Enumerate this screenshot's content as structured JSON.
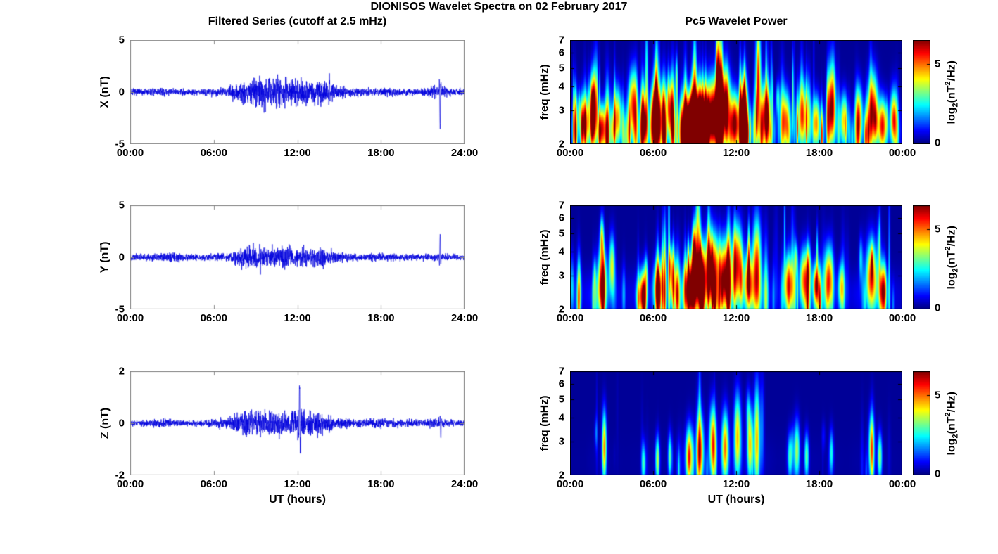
{
  "figure": {
    "title": "DIONISOS Wavelet Spectra on 02 February 2017",
    "left_column_title": "Filtered Series (cutoff at 2.5 mHz)",
    "right_column_title": "Pc5 Wavelet Power",
    "xlabel": "UT (hours)",
    "colorbar": {
      "label_parts": {
        "p1": "log",
        "sub": "2",
        "p2": "(nT",
        "sup": "2",
        "p3": "/Hz)"
      },
      "ticks": [
        0,
        5
      ],
      "range": [
        0,
        6.5
      ]
    }
  },
  "chart_data": [
    {
      "type": "line",
      "id": "ts_x",
      "ylabel": "X (nT)",
      "xlabel": "",
      "ylim": [
        -5,
        5
      ],
      "yticks": [
        5,
        0,
        -5
      ],
      "xticks": {
        "labels": [
          "00:00",
          "06:00",
          "12:00",
          "18:00",
          "24:00"
        ],
        "hours": [
          0,
          6,
          12,
          18,
          24
        ]
      },
      "x_range_hours": [
        0,
        24
      ],
      "line_color": "#0000DD",
      "seed": 7,
      "noise_envelope_hourly": [
        0.28,
        0.3,
        0.34,
        0.3,
        0.28,
        0.3,
        0.34,
        0.4,
        0.95,
        1.3,
        1.25,
        1.4,
        1.05,
        0.95,
        1.1,
        0.45,
        0.38,
        0.32,
        0.42,
        0.36,
        0.3,
        0.3,
        0.55,
        0.3,
        0.28
      ],
      "spikes": [
        {
          "hour": 22.25,
          "amp": -3.4
        },
        {
          "hour": 14.3,
          "amp": 1.6
        },
        {
          "hour": 10.6,
          "amp": 1.8
        }
      ]
    },
    {
      "type": "line",
      "id": "ts_y",
      "ylabel": "Y (nT)",
      "xlabel": "",
      "ylim": [
        -5,
        5
      ],
      "yticks": [
        5,
        0,
        -5
      ],
      "xticks": {
        "labels": [
          "00:00",
          "06:00",
          "12:00",
          "18:00",
          "24:00"
        ],
        "hours": [
          0,
          6,
          12,
          18,
          24
        ]
      },
      "x_range_hours": [
        0,
        24
      ],
      "line_color": "#0000DD",
      "seed": 13,
      "noise_envelope_hourly": [
        0.24,
        0.26,
        0.3,
        0.45,
        0.28,
        0.24,
        0.3,
        0.36,
        0.8,
        1.0,
        0.85,
        0.95,
        0.8,
        0.95,
        0.9,
        0.38,
        0.3,
        0.3,
        0.36,
        0.3,
        0.26,
        0.26,
        0.32,
        0.26,
        0.24
      ],
      "spikes": [
        {
          "hour": 22.25,
          "amp": 2.3
        },
        {
          "hour": 9.3,
          "amp": 1.4
        }
      ]
    },
    {
      "type": "line",
      "id": "ts_z",
      "ylabel": "Z (nT)",
      "xlabel": "UT (hours)",
      "ylim": [
        -2,
        2
      ],
      "yticks": [
        2,
        0,
        -2
      ],
      "xticks": {
        "labels": [
          "00:00",
          "06:00",
          "12:00",
          "18:00",
          "24:00"
        ],
        "hours": [
          0,
          6,
          12,
          18,
          24
        ]
      },
      "x_range_hours": [
        0,
        24
      ],
      "line_color": "#0000DD",
      "seed": 21,
      "noise_envelope_hourly": [
        0.1,
        0.1,
        0.16,
        0.13,
        0.1,
        0.11,
        0.14,
        0.18,
        0.38,
        0.45,
        0.4,
        0.42,
        0.46,
        0.4,
        0.34,
        0.18,
        0.14,
        0.14,
        0.18,
        0.16,
        0.13,
        0.11,
        0.18,
        0.11,
        0.1
      ],
      "spikes": [
        {
          "hour": 12.15,
          "amp": 1.35
        },
        {
          "hour": 12.22,
          "amp": -0.9
        },
        {
          "hour": 22.3,
          "amp": -0.6
        }
      ]
    },
    {
      "type": "heatmap",
      "id": "wav_x",
      "ylabel": "freq (mHz)",
      "xlabel": "",
      "freq_range_mhz": [
        2,
        7
      ],
      "yticks": [
        7,
        6,
        5,
        4,
        3,
        2
      ],
      "xticks": {
        "labels": [
          "00:00",
          "06:00",
          "12:00",
          "18:00",
          "00:00"
        ],
        "hours": [
          0,
          6,
          12,
          18,
          24
        ]
      },
      "power_range": [
        0,
        6.5
      ],
      "background_power": 0.15,
      "band_amp": 1.6,
      "band_center_mhz": 2.35,
      "n_streaks": 150,
      "streak_gain": 1.0,
      "seed": 101,
      "activity_hourly": [
        0.7,
        0.6,
        0.7,
        0.5,
        0.5,
        0.6,
        0.7,
        0.6,
        1.0,
        1.0,
        1.0,
        1.0,
        0.9,
        0.9,
        0.8,
        0.5,
        0.6,
        0.6,
        0.6,
        0.5,
        0.4,
        0.6,
        0.8,
        0.5,
        0.4
      ],
      "events": [
        [
          1.0,
          2.6,
          4.6,
          0.3,
          0.45
        ],
        [
          1.6,
          3.2,
          4.2,
          0.25,
          0.5
        ],
        [
          2.3,
          2.4,
          4.8,
          0.25,
          0.4
        ],
        [
          3.4,
          2.8,
          4.0,
          0.3,
          0.5
        ],
        [
          4.5,
          3.3,
          4.6,
          0.3,
          0.55
        ],
        [
          5.3,
          2.5,
          4.4,
          0.25,
          0.45
        ],
        [
          6.3,
          2.7,
          5.2,
          0.35,
          0.6
        ],
        [
          7.2,
          3.1,
          4.4,
          0.25,
          0.5
        ],
        [
          8.6,
          2.5,
          6.3,
          0.45,
          0.5
        ],
        [
          9.4,
          2.7,
          6.4,
          0.6,
          0.55
        ],
        [
          10.4,
          2.9,
          6.2,
          0.55,
          0.6
        ],
        [
          11.2,
          3.3,
          5.6,
          0.35,
          0.6
        ],
        [
          11.9,
          2.6,
          5.4,
          0.3,
          0.5
        ],
        [
          12.6,
          3.0,
          4.8,
          0.25,
          0.6
        ],
        [
          13.6,
          4.2,
          5.6,
          0.18,
          1.0
        ],
        [
          14.2,
          2.9,
          4.8,
          0.3,
          0.5
        ],
        [
          15.6,
          2.7,
          4.0,
          0.3,
          0.5
        ],
        [
          16.8,
          2.9,
          4.3,
          0.35,
          0.55
        ],
        [
          17.8,
          2.6,
          3.8,
          0.25,
          0.45
        ],
        [
          18.9,
          3.1,
          4.6,
          0.3,
          0.6
        ],
        [
          19.8,
          2.7,
          3.6,
          0.25,
          0.45
        ],
        [
          20.9,
          2.9,
          3.4,
          0.25,
          0.5
        ],
        [
          21.9,
          3.1,
          5.2,
          0.35,
          0.6
        ],
        [
          22.6,
          2.5,
          4.7,
          0.3,
          0.45
        ],
        [
          23.4,
          2.8,
          3.4,
          0.25,
          0.5
        ]
      ]
    },
    {
      "type": "heatmap",
      "id": "wav_y",
      "ylabel": "freq (mHz)",
      "xlabel": "",
      "freq_range_mhz": [
        2,
        7
      ],
      "yticks": [
        7,
        6,
        5,
        4,
        3,
        2
      ],
      "xticks": {
        "labels": [
          "00:00",
          "06:00",
          "12:00",
          "18:00",
          "00:00"
        ],
        "hours": [
          0,
          6,
          12,
          18,
          24
        ]
      },
      "power_range": [
        0,
        6.5
      ],
      "background_power": 0.15,
      "band_amp": 1.1,
      "band_center_mhz": 2.35,
      "n_streaks": 120,
      "streak_gain": 0.85,
      "seed": 202,
      "activity_hourly": [
        0.5,
        0.5,
        0.9,
        0.6,
        0.4,
        0.5,
        0.6,
        0.7,
        1.0,
        1.0,
        0.9,
        1.0,
        0.9,
        1.0,
        0.8,
        0.4,
        0.5,
        0.6,
        0.7,
        0.5,
        0.3,
        0.6,
        0.8,
        0.5,
        0.3
      ],
      "events": [
        [
          2.3,
          2.7,
          5.9,
          0.3,
          0.6
        ],
        [
          3.0,
          3.4,
          3.6,
          0.2,
          0.5
        ],
        [
          5.2,
          2.4,
          4.4,
          0.28,
          0.4
        ],
        [
          6.3,
          2.6,
          4.2,
          0.28,
          0.45
        ],
        [
          7.4,
          2.9,
          3.8,
          0.22,
          0.5
        ],
        [
          8.6,
          2.5,
          6.1,
          0.4,
          0.55
        ],
        [
          9.4,
          2.9,
          6.0,
          0.5,
          0.6
        ],
        [
          10.3,
          3.3,
          5.7,
          0.45,
          0.6
        ],
        [
          11.2,
          3.0,
          5.9,
          0.45,
          0.6
        ],
        [
          12.1,
          3.5,
          5.3,
          0.35,
          0.65
        ],
        [
          12.9,
          2.8,
          5.0,
          0.3,
          0.5
        ],
        [
          13.5,
          3.2,
          5.6,
          0.3,
          0.85
        ],
        [
          15.8,
          2.7,
          4.5,
          0.35,
          0.5
        ],
        [
          16.9,
          2.9,
          4.3,
          0.3,
          0.5
        ],
        [
          17.8,
          2.6,
          3.6,
          0.22,
          0.45
        ],
        [
          18.7,
          2.9,
          4.8,
          0.32,
          0.55
        ],
        [
          19.6,
          2.6,
          3.2,
          0.22,
          0.4
        ],
        [
          21.8,
          3.0,
          5.0,
          0.38,
          0.6
        ],
        [
          22.6,
          2.5,
          4.5,
          0.28,
          0.45
        ]
      ]
    },
    {
      "type": "heatmap",
      "id": "wav_z",
      "ylabel": "freq (mHz)",
      "xlabel": "UT (hours)",
      "freq_range_mhz": [
        2,
        7
      ],
      "yticks": [
        7,
        6,
        5,
        4,
        3,
        2
      ],
      "xticks": {
        "labels": [
          "00:00",
          "06:00",
          "12:00",
          "18:00",
          "00:00"
        ],
        "hours": [
          0,
          6,
          12,
          18,
          24
        ]
      },
      "power_range": [
        0,
        6.5
      ],
      "background_power": 0.15,
      "band_amp": 0.3,
      "band_center_mhz": 2.35,
      "n_streaks": 60,
      "streak_gain": 0.5,
      "seed": 303,
      "activity_hourly": [
        0.1,
        0.1,
        0.5,
        0.2,
        0.1,
        0.15,
        0.3,
        0.3,
        0.8,
        0.8,
        0.7,
        0.8,
        0.9,
        0.8,
        0.6,
        0.2,
        0.3,
        0.4,
        0.3,
        0.2,
        0.1,
        0.3,
        0.5,
        0.2,
        0.1
      ],
      "events": [
        [
          2.45,
          2.8,
          4.6,
          0.16,
          0.6
        ],
        [
          5.3,
          2.3,
          2.6,
          0.15,
          0.35
        ],
        [
          6.3,
          2.4,
          3.1,
          0.16,
          0.4
        ],
        [
          7.2,
          2.5,
          2.8,
          0.14,
          0.4
        ],
        [
          8.6,
          2.5,
          4.9,
          0.25,
          0.5
        ],
        [
          9.4,
          2.7,
          4.6,
          0.25,
          0.6
        ],
        [
          10.3,
          3.0,
          4.4,
          0.25,
          0.6
        ],
        [
          11.2,
          2.8,
          4.7,
          0.25,
          0.6
        ],
        [
          12.1,
          3.2,
          4.3,
          0.25,
          0.7
        ],
        [
          13.0,
          2.9,
          4.2,
          0.2,
          0.6
        ],
        [
          13.5,
          3.1,
          4.4,
          0.2,
          0.9
        ],
        [
          15.9,
          2.5,
          2.8,
          0.18,
          0.4
        ],
        [
          16.4,
          2.7,
          3.3,
          0.2,
          0.5
        ],
        [
          17.1,
          2.5,
          2.9,
          0.16,
          0.4
        ],
        [
          18.9,
          2.6,
          2.4,
          0.15,
          0.4
        ],
        [
          21.8,
          2.8,
          3.9,
          0.2,
          0.55
        ],
        [
          22.4,
          2.5,
          3.3,
          0.16,
          0.4
        ]
      ]
    }
  ]
}
